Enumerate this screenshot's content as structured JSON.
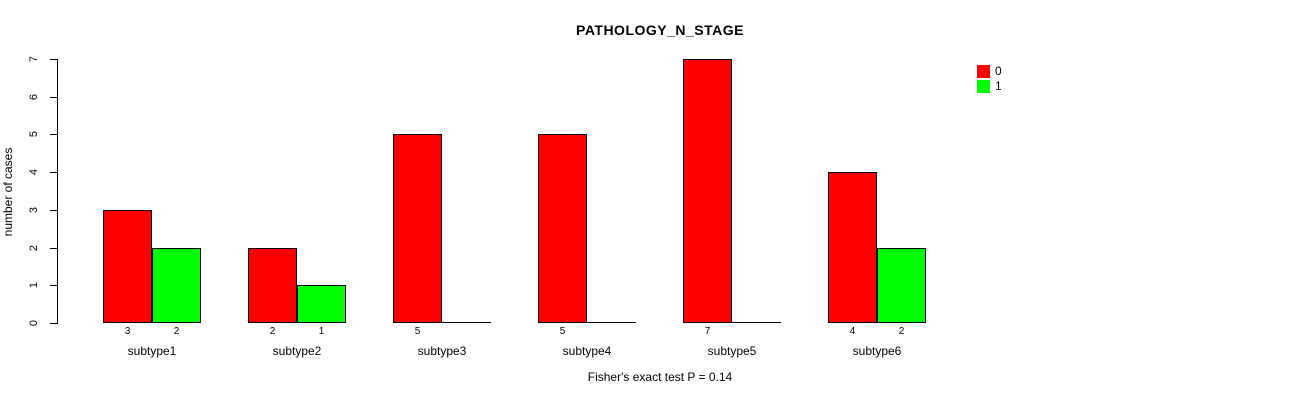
{
  "title": "PATHOLOGY_N_STAGE",
  "footer": "Fisher's exact test P = 0.14",
  "y_axis_label": "number of cases",
  "legend": {
    "items": [
      {
        "label": "0",
        "color": "#FF0000"
      },
      {
        "label": "1",
        "color": "#00FF00"
      }
    ]
  },
  "chart_data": {
    "type": "bar",
    "title": "PATHOLOGY_N_STAGE",
    "categories": [
      "subtype1",
      "subtype2",
      "subtype3",
      "subtype4",
      "subtype5",
      "subtype6"
    ],
    "series": [
      {
        "name": "0",
        "color": "#FF0000",
        "values": [
          3,
          2,
          5,
          5,
          7,
          4
        ]
      },
      {
        "name": "1",
        "color": "#00FF00",
        "values": [
          2,
          1,
          0,
          0,
          0,
          2
        ]
      }
    ],
    "bar_value_labels": [
      "3",
      "2",
      "2",
      "1",
      "5",
      "",
      "5",
      "",
      "7",
      "",
      "4",
      "2"
    ],
    "xlabel": "",
    "ylabel": "number of cases",
    "ylim": [
      0,
      7
    ],
    "yticks": [
      0,
      1,
      2,
      3,
      4,
      5,
      6,
      7
    ],
    "grid": false,
    "legend_position": "top-right",
    "annotation": "Fisher's exact test P = 0.14"
  }
}
